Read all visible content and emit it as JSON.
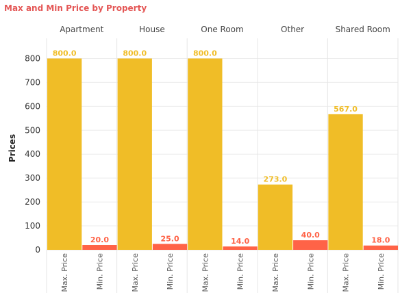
{
  "title": "Max and Min Price by Property",
  "colors": {
    "title": "#e45756",
    "max": "#f0bd27",
    "min": "#ff6347",
    "max_label": "#f0bd27",
    "min_label": "#ff6347"
  },
  "chart_data": {
    "type": "bar",
    "title": "Max and Min Price by Property",
    "ylabel": "Prices",
    "xlabel": "",
    "y_ticks": [
      0,
      100,
      200,
      300,
      400,
      500,
      600,
      700,
      800
    ],
    "ylim": [
      0,
      850
    ],
    "grid": true,
    "legend": "none",
    "facets": [
      "Apartment",
      "House",
      "One Room",
      "Other",
      "Shared Room"
    ],
    "measure_labels": [
      "Max. Price",
      "Min. Price"
    ],
    "series": [
      {
        "name": "Max. Price",
        "values": [
          800,
          800,
          800,
          273,
          567
        ],
        "labels": [
          "800.0",
          "800.0",
          "800.0",
          "273.0",
          "567.0"
        ]
      },
      {
        "name": "Min. Price",
        "values": [
          20,
          25,
          14,
          40,
          18
        ],
        "labels": [
          "20.0",
          "25.0",
          "14.0",
          "40.0",
          "18.0"
        ]
      }
    ]
  }
}
